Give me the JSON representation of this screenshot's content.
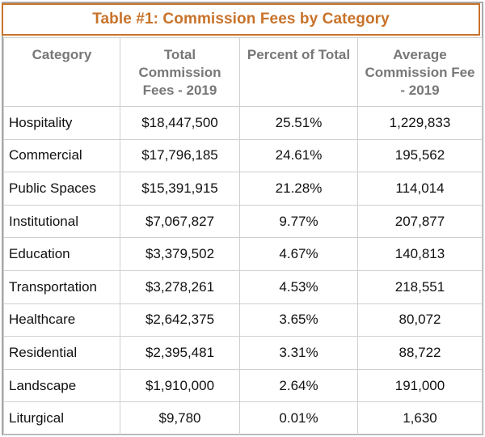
{
  "title": "Table #1: Commission Fees by Category",
  "colors": {
    "accent": "#c8732a",
    "header_text": "#777777",
    "grid": "#cfcfcf"
  },
  "chart_data": {
    "type": "table",
    "title": "Table #1: Commission Fees by Category",
    "columns": [
      "Category",
      "Total Commission Fees - 2019",
      "Percent of Total",
      "Average Commission Fee - 2019"
    ],
    "rows": [
      [
        "Hospitality",
        "$18,447,500",
        "25.51%",
        "1,229,833"
      ],
      [
        "Commercial",
        "$17,796,185",
        "24.61%",
        "195,562"
      ],
      [
        "Public Spaces",
        "$15,391,915",
        "21.28%",
        "114,014"
      ],
      [
        "Institutional",
        "$7,067,827",
        "9.77%",
        "207,877"
      ],
      [
        "Education",
        "$3,379,502",
        "4.67%",
        "140,813"
      ],
      [
        "Transportation",
        "$3,278,261",
        "4.53%",
        "218,551"
      ],
      [
        "Healthcare",
        "$2,642,375",
        "3.65%",
        "80,072"
      ],
      [
        "Residential",
        "$2,395,481",
        "3.31%",
        "88,722"
      ],
      [
        "Landscape",
        "$1,910,000",
        "2.64%",
        "191,000"
      ],
      [
        "Liturgical",
        "$9,780",
        "0.01%",
        "1,630"
      ]
    ]
  }
}
